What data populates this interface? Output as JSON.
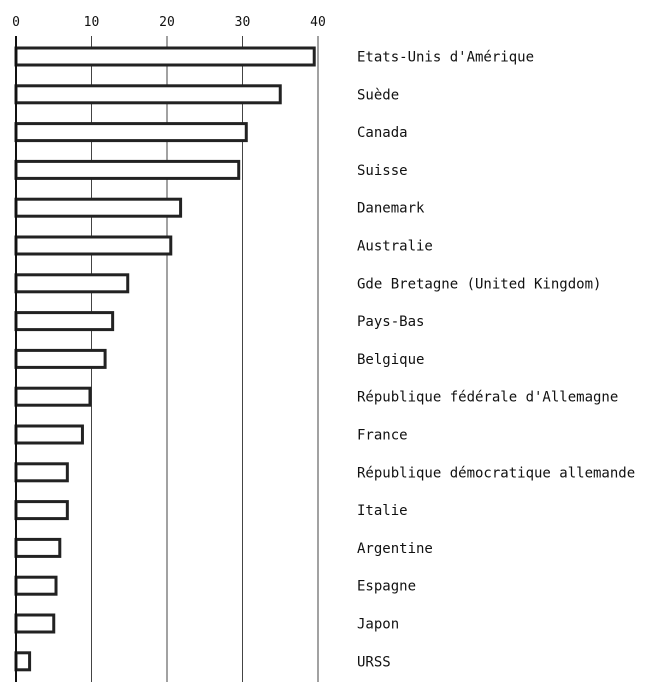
{
  "chart_data": {
    "type": "bar",
    "orientation": "horizontal",
    "categories": [
      "Etats-Unis d'Amérique",
      "Suède",
      "Canada",
      "Suisse",
      "Danemark",
      "Australie",
      "Gde Bretagne (United Kingdom)",
      "Pays-Bas",
      "Belgique",
      "République fédérale d'Allemagne",
      "France",
      "République démocratique allemande",
      "Italie",
      "Argentine",
      "Espagne",
      "Japon",
      "URSS"
    ],
    "values": [
      39.5,
      35,
      30.5,
      29.5,
      21.8,
      20.5,
      14.8,
      12.8,
      11.8,
      9.8,
      8.8,
      6.8,
      6.8,
      5.8,
      5.3,
      5,
      1.8
    ],
    "xlim": [
      0,
      40
    ],
    "xticks": [
      0,
      10,
      20,
      30,
      40
    ],
    "xtick_labels": [
      "0",
      "10",
      "20",
      "30",
      "40"
    ],
    "grid": true,
    "title": "",
    "xlabel": "",
    "ylabel": ""
  }
}
